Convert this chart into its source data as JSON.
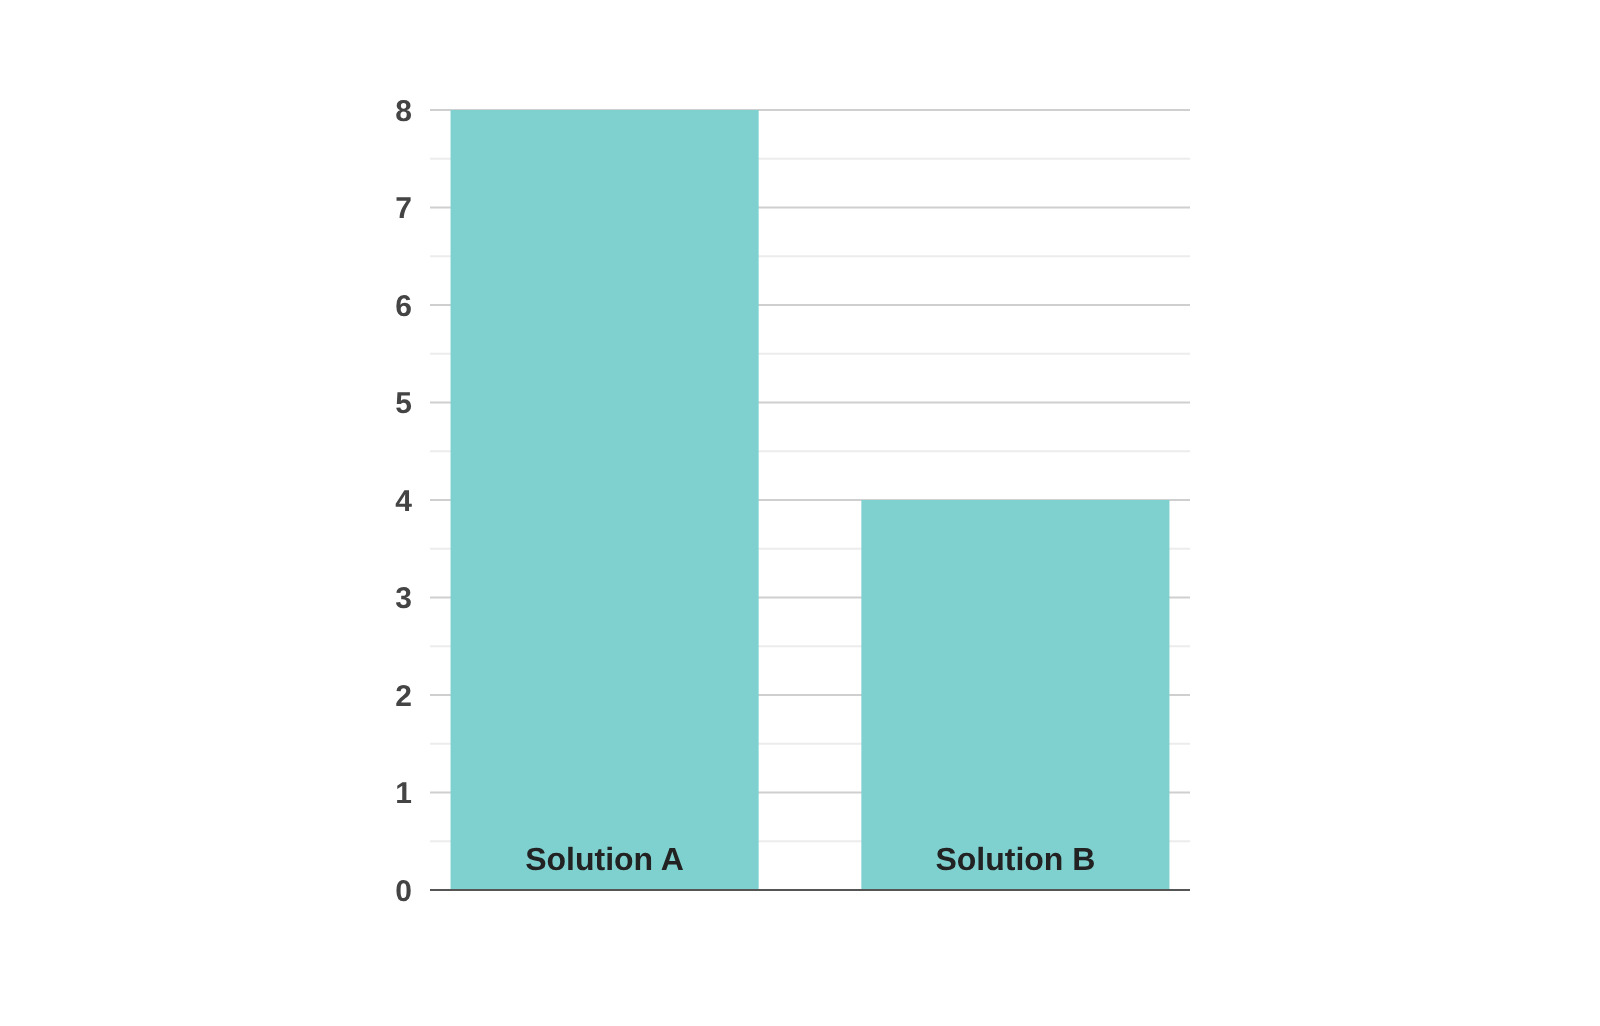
{
  "chart_data": {
    "type": "bar",
    "categories": [
      "Solution A",
      "Solution B"
    ],
    "values": [
      8,
      4
    ],
    "color": "#7fd1d0",
    "ylim": [
      0,
      8
    ],
    "yticks": [
      0,
      {
        "value": 0.5,
        "label": null
      },
      1,
      {
        "value": 1.5,
        "label": null
      },
      2,
      {
        "value": 2.5,
        "label": null
      },
      3,
      {
        "value": 3.5,
        "label": null
      },
      4,
      {
        "value": 4.5,
        "label": null
      },
      5,
      {
        "value": 5.5,
        "label": null
      },
      6,
      {
        "value": 6.5,
        "label": null
      },
      7,
      {
        "value": 7.5,
        "label": null
      },
      8
    ],
    "grid": true
  }
}
